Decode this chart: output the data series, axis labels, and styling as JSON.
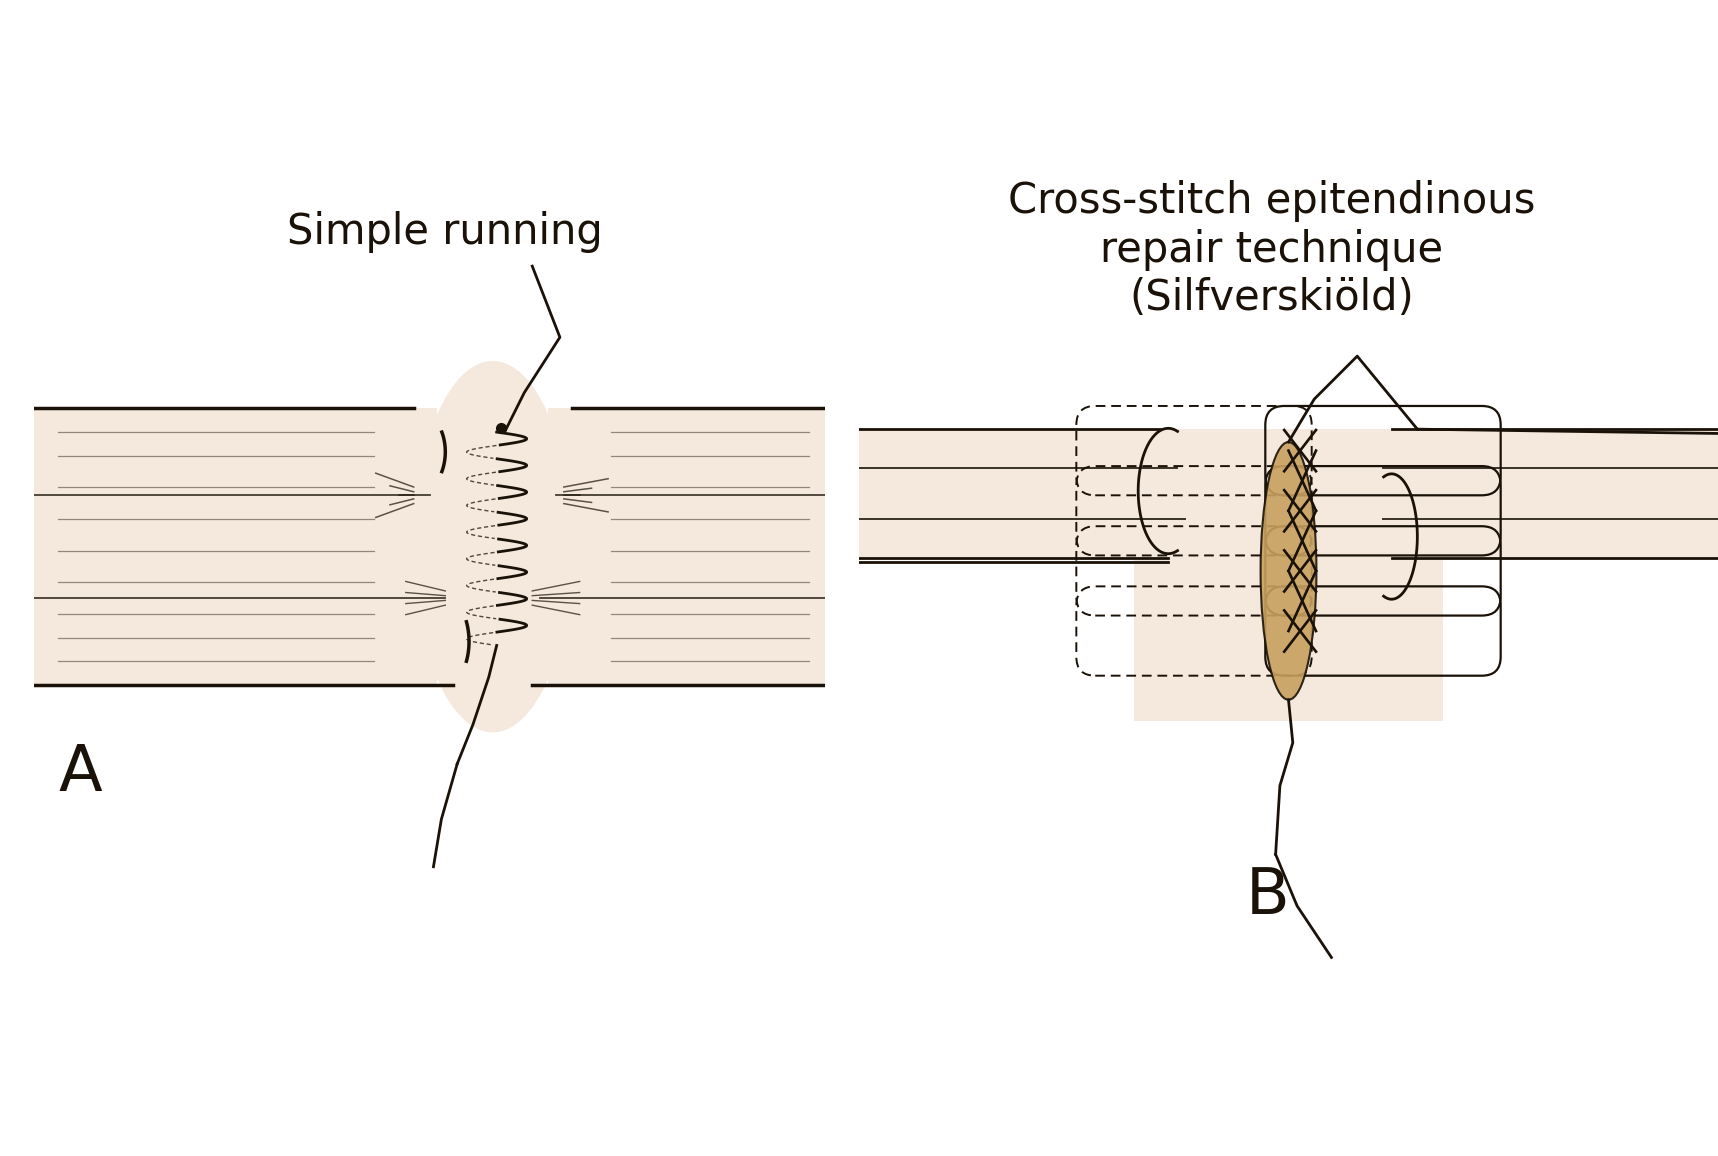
{
  "bg_color": "#ffffff",
  "tendon_fill": "#f5e8dc",
  "knot_fill": "#c8a060",
  "line_color": "#1a1208",
  "title_A": "Simple running",
  "title_B": "Cross-stitch epitendinous\nrepair technique\n(Silfverskiöld)",
  "label_A": "A",
  "label_B": "B",
  "font_size_title": 30,
  "font_size_label": 46,
  "fig_width": 17.18,
  "fig_height": 11.56
}
